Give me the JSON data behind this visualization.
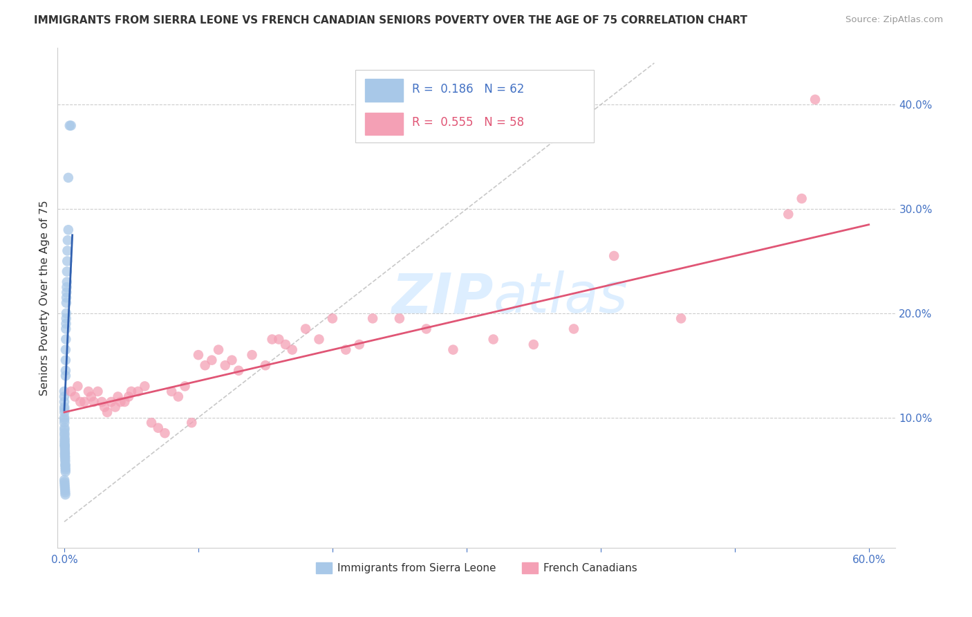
{
  "title": "IMMIGRANTS FROM SIERRA LEONE VS FRENCH CANADIAN SENIORS POVERTY OVER THE AGE OF 75 CORRELATION CHART",
  "source": "Source: ZipAtlas.com",
  "ylabel": "Seniors Poverty Over the Age of 75",
  "xlim": [
    -0.005,
    0.62
  ],
  "ylim": [
    -0.025,
    0.455
  ],
  "yticks": [
    0.1,
    0.2,
    0.3,
    0.4
  ],
  "xticks": [
    0.0,
    0.1,
    0.2,
    0.3,
    0.4,
    0.5,
    0.6
  ],
  "xtick_labels": [
    "0.0%",
    "",
    "",
    "",
    "",
    "",
    "60.0%"
  ],
  "ytick_labels": [
    "10.0%",
    "20.0%",
    "30.0%",
    "40.0%"
  ],
  "blue_color": "#a8c8e8",
  "pink_color": "#f4a0b5",
  "blue_line_color": "#3060b0",
  "pink_line_color": "#e05575",
  "axis_color": "#4472C4",
  "watermark_color": "#ddeeff",
  "sierra_leone_x": [
    0.0,
    0.0,
    0.0,
    0.0001,
    0.0001,
    0.0001,
    0.0001,
    0.0001,
    0.0001,
    0.0002,
    0.0002,
    0.0002,
    0.0002,
    0.0003,
    0.0003,
    0.0003,
    0.0003,
    0.0004,
    0.0004,
    0.0004,
    0.0005,
    0.0005,
    0.0005,
    0.0005,
    0.0006,
    0.0006,
    0.0007,
    0.0007,
    0.0008,
    0.0008,
    0.0009,
    0.0009,
    0.001,
    0.001,
    0.001,
    0.001,
    0.0012,
    0.0012,
    0.0013,
    0.0014,
    0.0015,
    0.0015,
    0.0016,
    0.0017,
    0.0018,
    0.002,
    0.002,
    0.0022,
    0.0023,
    0.0025,
    0.003,
    0.003,
    0.004,
    0.005,
    0.0001,
    0.0002,
    0.0003,
    0.0004,
    0.0005,
    0.0006,
    0.0007,
    0.0008
  ],
  "sierra_leone_y": [
    0.125,
    0.12,
    0.115,
    0.11,
    0.108,
    0.105,
    0.1,
    0.098,
    0.095,
    0.09,
    0.088,
    0.085,
    0.083,
    0.08,
    0.078,
    0.076,
    0.074,
    0.073,
    0.072,
    0.07,
    0.068,
    0.066,
    0.065,
    0.063,
    0.062,
    0.06,
    0.058,
    0.055,
    0.054,
    0.052,
    0.05,
    0.048,
    0.14,
    0.145,
    0.155,
    0.165,
    0.175,
    0.185,
    0.19,
    0.195,
    0.2,
    0.21,
    0.215,
    0.22,
    0.225,
    0.23,
    0.24,
    0.25,
    0.26,
    0.27,
    0.28,
    0.33,
    0.38,
    0.38,
    0.04,
    0.038,
    0.036,
    0.034,
    0.032,
    0.03,
    0.028,
    0.026
  ],
  "french_canadian_x": [
    0.005,
    0.008,
    0.01,
    0.012,
    0.015,
    0.018,
    0.02,
    0.022,
    0.025,
    0.028,
    0.03,
    0.032,
    0.035,
    0.038,
    0.04,
    0.042,
    0.045,
    0.048,
    0.05,
    0.055,
    0.06,
    0.065,
    0.07,
    0.075,
    0.08,
    0.085,
    0.09,
    0.095,
    0.1,
    0.105,
    0.11,
    0.115,
    0.12,
    0.125,
    0.13,
    0.14,
    0.15,
    0.155,
    0.16,
    0.165,
    0.17,
    0.18,
    0.19,
    0.2,
    0.21,
    0.22,
    0.23,
    0.25,
    0.27,
    0.29,
    0.32,
    0.35,
    0.38,
    0.41,
    0.46,
    0.54,
    0.55,
    0.56
  ],
  "french_canadian_y": [
    0.125,
    0.12,
    0.13,
    0.115,
    0.115,
    0.125,
    0.12,
    0.115,
    0.125,
    0.115,
    0.11,
    0.105,
    0.115,
    0.11,
    0.12,
    0.115,
    0.115,
    0.12,
    0.125,
    0.125,
    0.13,
    0.095,
    0.09,
    0.085,
    0.125,
    0.12,
    0.13,
    0.095,
    0.16,
    0.15,
    0.155,
    0.165,
    0.15,
    0.155,
    0.145,
    0.16,
    0.15,
    0.175,
    0.175,
    0.17,
    0.165,
    0.185,
    0.175,
    0.195,
    0.165,
    0.17,
    0.195,
    0.195,
    0.185,
    0.165,
    0.175,
    0.17,
    0.185,
    0.255,
    0.195,
    0.295,
    0.31,
    0.405
  ],
  "sl_trend_x": [
    0.0,
    0.006
  ],
  "sl_trend_y_intercept": 0.107,
  "sl_trend_slope": 28.0,
  "fc_trend_x": [
    0.0,
    0.6
  ],
  "fc_trend_y": [
    0.105,
    0.285
  ]
}
